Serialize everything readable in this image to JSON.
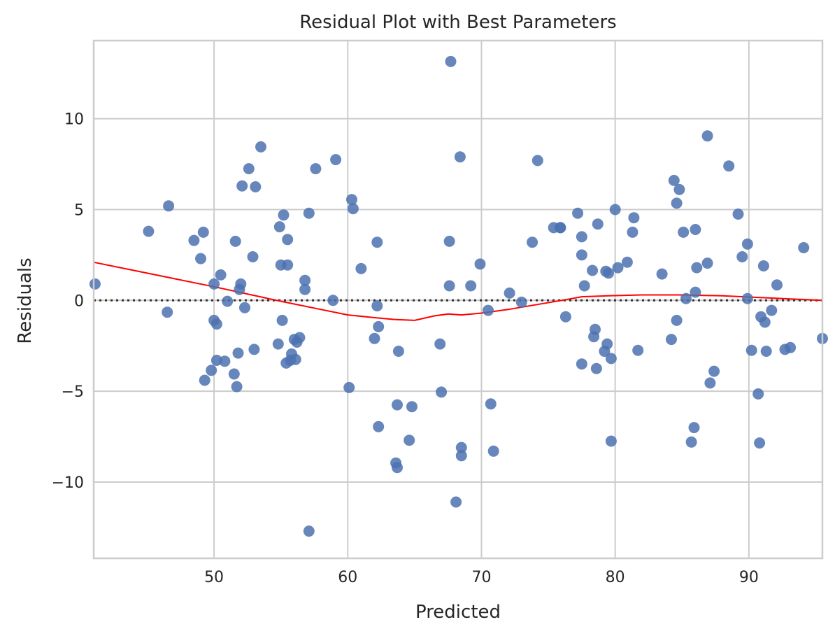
{
  "chart_data": {
    "type": "scatter",
    "title": "Residual Plot with Best Parameters",
    "xlabel": "Predicted",
    "ylabel": "Residuals",
    "xlim": [
      41,
      95.5
    ],
    "ylim": [
      -14.2,
      14.3
    ],
    "xticks": [
      50,
      60,
      70,
      80,
      90
    ],
    "yticks": [
      10,
      5,
      0,
      -5,
      -10
    ],
    "xtick_labels": [
      "50",
      "60",
      "70",
      "80",
      "90"
    ],
    "ytick_labels": [
      "10",
      "5",
      "0",
      "−5",
      "−10"
    ],
    "grid": true,
    "zero_line": 0,
    "colors": {
      "points": "#4c72b0",
      "lowess": "#ff0000",
      "zero_line": "#333333",
      "grid": "#cccccc"
    },
    "series": [
      {
        "type": "scatter",
        "points": [
          [
            41.1,
            0.9
          ],
          [
            45.1,
            3.8
          ],
          [
            46.5,
            -0.65
          ],
          [
            46.6,
            5.2
          ],
          [
            48.5,
            3.3
          ],
          [
            49.0,
            2.3
          ],
          [
            49.2,
            3.75
          ],
          [
            49.3,
            -4.4
          ],
          [
            49.8,
            -3.85
          ],
          [
            50.0,
            0.9
          ],
          [
            50.0,
            -1.1
          ],
          [
            50.2,
            -1.3
          ],
          [
            50.2,
            -3.3
          ],
          [
            50.5,
            1.4
          ],
          [
            50.8,
            -3.35
          ],
          [
            51.0,
            -0.05
          ],
          [
            51.5,
            -4.05
          ],
          [
            51.6,
            3.25
          ],
          [
            51.7,
            -4.75
          ],
          [
            51.8,
            -2.9
          ],
          [
            51.9,
            0.6
          ],
          [
            52.0,
            0.9
          ],
          [
            52.1,
            6.3
          ],
          [
            52.3,
            -0.4
          ],
          [
            52.6,
            7.25
          ],
          [
            52.9,
            2.4
          ],
          [
            53.0,
            -2.7
          ],
          [
            53.1,
            6.25
          ],
          [
            53.5,
            8.45
          ],
          [
            54.8,
            -2.4
          ],
          [
            54.9,
            4.05
          ],
          [
            55.0,
            1.95
          ],
          [
            55.1,
            -1.1
          ],
          [
            55.2,
            4.7
          ],
          [
            55.4,
            -3.45
          ],
          [
            55.5,
            1.95
          ],
          [
            55.5,
            3.35
          ],
          [
            55.7,
            -3.3
          ],
          [
            55.8,
            -2.95
          ],
          [
            56.0,
            -2.15
          ],
          [
            56.1,
            -3.25
          ],
          [
            56.2,
            -2.3
          ],
          [
            56.4,
            -2.05
          ],
          [
            56.8,
            1.1
          ],
          [
            56.8,
            0.6
          ],
          [
            57.1,
            4.8
          ],
          [
            57.1,
            -12.7
          ],
          [
            57.6,
            7.25
          ],
          [
            58.9,
            0.0
          ],
          [
            59.1,
            7.75
          ],
          [
            60.1,
            -4.8
          ],
          [
            60.3,
            5.55
          ],
          [
            60.4,
            5.05
          ],
          [
            61.0,
            1.75
          ],
          [
            62.0,
            -2.1
          ],
          [
            62.2,
            3.2
          ],
          [
            62.2,
            -0.3
          ],
          [
            62.3,
            -1.45
          ],
          [
            62.3,
            -6.95
          ],
          [
            63.6,
            -8.95
          ],
          [
            63.7,
            -5.75
          ],
          [
            63.7,
            -9.2
          ],
          [
            63.8,
            -2.8
          ],
          [
            64.6,
            -7.7
          ],
          [
            64.8,
            -5.85
          ],
          [
            66.9,
            -2.4
          ],
          [
            67.0,
            -5.05
          ],
          [
            67.6,
            3.25
          ],
          [
            67.6,
            0.8
          ],
          [
            67.7,
            13.15
          ],
          [
            68.1,
            -11.1
          ],
          [
            68.4,
            7.9
          ],
          [
            68.5,
            -8.1
          ],
          [
            68.5,
            -8.55
          ],
          [
            69.2,
            0.8
          ],
          [
            69.9,
            2.0
          ],
          [
            70.5,
            -0.55
          ],
          [
            70.7,
            -5.7
          ],
          [
            70.9,
            -8.3
          ],
          [
            72.1,
            0.4
          ],
          [
            73.0,
            -0.1
          ],
          [
            73.8,
            3.2
          ],
          [
            74.2,
            7.7
          ],
          [
            75.4,
            4.0
          ],
          [
            75.9,
            4.0
          ],
          [
            75.9,
            4.0
          ],
          [
            76.3,
            -0.9
          ],
          [
            77.2,
            4.8
          ],
          [
            77.5,
            2.5
          ],
          [
            77.5,
            -3.5
          ],
          [
            77.5,
            3.5
          ],
          [
            77.7,
            0.8
          ],
          [
            78.3,
            1.65
          ],
          [
            78.4,
            -2.0
          ],
          [
            78.5,
            -1.6
          ],
          [
            78.6,
            -3.75
          ],
          [
            78.7,
            4.2
          ],
          [
            79.2,
            -2.8
          ],
          [
            79.3,
            1.6
          ],
          [
            79.4,
            -2.4
          ],
          [
            79.5,
            1.5
          ],
          [
            79.7,
            -3.2
          ],
          [
            79.7,
            -7.75
          ],
          [
            80.0,
            5.0
          ],
          [
            80.2,
            1.8
          ],
          [
            80.9,
            2.1
          ],
          [
            81.3,
            3.75
          ],
          [
            81.4,
            4.55
          ],
          [
            81.7,
            -2.75
          ],
          [
            83.5,
            1.45
          ],
          [
            84.2,
            -2.15
          ],
          [
            84.4,
            6.6
          ],
          [
            84.6,
            5.35
          ],
          [
            84.6,
            -1.1
          ],
          [
            84.8,
            6.1
          ],
          [
            85.1,
            3.75
          ],
          [
            85.3,
            0.1
          ],
          [
            85.7,
            -7.8
          ],
          [
            85.9,
            -7.0
          ],
          [
            86.0,
            3.9
          ],
          [
            86.0,
            0.45
          ],
          [
            86.1,
            1.8
          ],
          [
            86.9,
            9.05
          ],
          [
            86.9,
            2.05
          ],
          [
            87.1,
            -4.55
          ],
          [
            87.4,
            -3.9
          ],
          [
            88.5,
            7.4
          ],
          [
            89.2,
            4.75
          ],
          [
            89.5,
            2.4
          ],
          [
            89.9,
            3.1
          ],
          [
            89.9,
            0.1
          ],
          [
            90.2,
            -2.75
          ],
          [
            90.7,
            -5.15
          ],
          [
            90.8,
            -7.85
          ],
          [
            90.9,
            -0.9
          ],
          [
            91.1,
            1.9
          ],
          [
            91.2,
            -1.2
          ],
          [
            91.3,
            -2.8
          ],
          [
            91.7,
            -0.55
          ],
          [
            92.1,
            0.85
          ],
          [
            92.7,
            -2.7
          ],
          [
            93.1,
            -2.6
          ],
          [
            94.1,
            2.9
          ],
          [
            95.5,
            -2.1
          ]
        ]
      },
      {
        "type": "line",
        "points": [
          [
            41.0,
            2.1
          ],
          [
            45.0,
            1.5
          ],
          [
            50.0,
            0.75
          ],
          [
            55.0,
            -0.05
          ],
          [
            58.0,
            -0.5
          ],
          [
            60.0,
            -0.8
          ],
          [
            62.0,
            -0.95
          ],
          [
            63.5,
            -1.05
          ],
          [
            65.0,
            -1.1
          ],
          [
            66.5,
            -0.85
          ],
          [
            67.5,
            -0.75
          ],
          [
            68.5,
            -0.8
          ],
          [
            70.0,
            -0.7
          ],
          [
            72.0,
            -0.5
          ],
          [
            74.0,
            -0.25
          ],
          [
            76.0,
            0.0
          ],
          [
            77.5,
            0.2
          ],
          [
            79.5,
            0.25
          ],
          [
            82.0,
            0.3
          ],
          [
            85.0,
            0.3
          ],
          [
            88.0,
            0.25
          ],
          [
            91.0,
            0.15
          ],
          [
            95.5,
            0.0
          ]
        ]
      }
    ]
  }
}
